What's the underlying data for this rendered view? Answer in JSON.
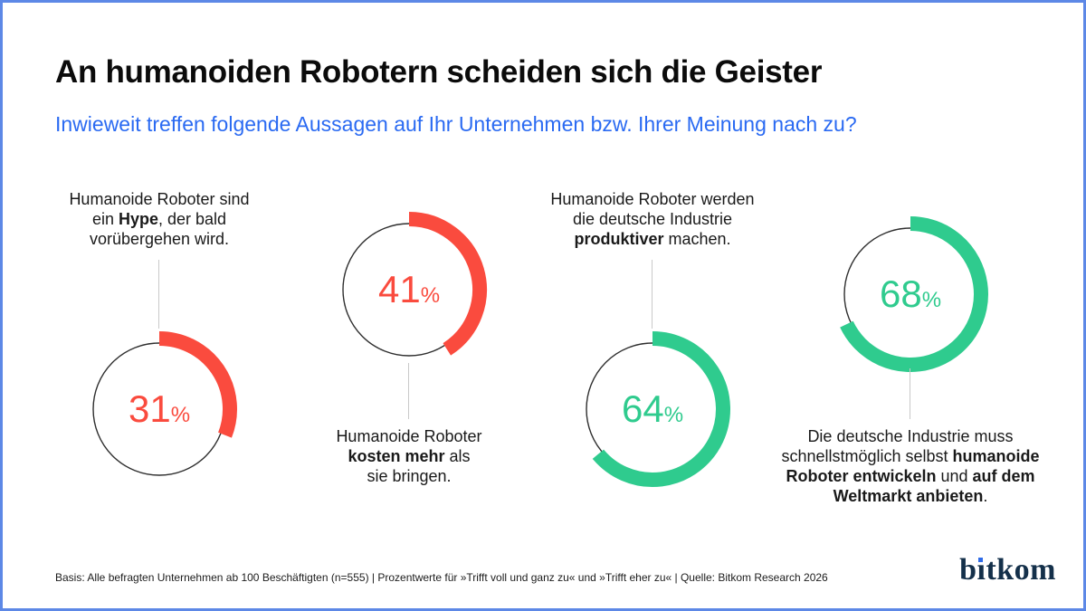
{
  "page": {
    "title": "An humanoiden Robotern scheiden sich die Geister",
    "subtitle": "Inwieweit treffen folgende Aussagen auf Ihr Unternehmen bzw. Ihrer Meinung nach zu?",
    "footer": "Basis: Alle befragten Unternehmen ab 100 Beschäftigten (n=555) | Prozentwerte für »Trifft voll und ganz zu« und »Trifft eher zu« | Quelle: Bitkom Research 2026",
    "logo_text": "bitkom",
    "logo": {
      "pre": "b",
      "i": "ı",
      "post": "tkom"
    }
  },
  "colors": {
    "accent_red": "#fa4b3e",
    "accent_green": "#2fcb8e",
    "subtitle_blue": "#2a6af2",
    "border_blue": "#5d88e6",
    "ring_outline": "#2e2e2e",
    "connector_gray": "#c9c9c9",
    "logo_navy": "#14304a",
    "logo_dot_blue": "#2f6be8"
  },
  "charts": [
    {
      "id": "hype",
      "percent": 31,
      "value_label": "31",
      "percent_sign": "%",
      "color": "#fa4b3e",
      "label_position": "above",
      "label_segments": [
        {
          "text": "Humanoide Roboter sind\nein ",
          "bold": false
        },
        {
          "text": "Hype",
          "bold": true
        },
        {
          "text": ", der bald\nvorübergehen wird.",
          "bold": false
        }
      ]
    },
    {
      "id": "kosten",
      "percent": 41,
      "value_label": "41",
      "percent_sign": "%",
      "color": "#fa4b3e",
      "label_position": "below",
      "label_segments": [
        {
          "text": "Humanoide Roboter\n",
          "bold": false
        },
        {
          "text": "kosten mehr",
          "bold": true
        },
        {
          "text": " als\nsie bringen.",
          "bold": false
        }
      ]
    },
    {
      "id": "produktiver",
      "percent": 64,
      "value_label": "64",
      "percent_sign": "%",
      "color": "#2fcb8e",
      "label_position": "above",
      "label_segments": [
        {
          "text": "Humanoide Roboter werden\ndie deutsche Industrie\n",
          "bold": false
        },
        {
          "text": "produktiver",
          "bold": true
        },
        {
          "text": " machen.",
          "bold": false
        }
      ]
    },
    {
      "id": "weltmarkt",
      "percent": 68,
      "value_label": "68",
      "percent_sign": "%",
      "color": "#2fcb8e",
      "label_position": "below",
      "label_segments": [
        {
          "text": "Die deutsche Industrie muss\nschnellstmöglich selbst ",
          "bold": false
        },
        {
          "text": "humanoide\nRoboter entwickeln",
          "bold": true
        },
        {
          "text": " und ",
          "bold": false
        },
        {
          "text": "auf dem\nWeltmarkt anbieten",
          "bold": true
        },
        {
          "text": ".",
          "bold": false
        }
      ]
    }
  ],
  "chart_data": {
    "type": "donut",
    "title": "An humanoiden Robotern scheiden sich die Geister",
    "subtitle": "Inwieweit treffen folgende Aussagen auf Ihr Unternehmen bzw. Ihrer Meinung nach zu?",
    "categories": [
      "Humanoide Roboter sind ein Hype, der bald vorübergehen wird.",
      "Humanoide Roboter kosten mehr als sie bringen.",
      "Humanoide Roboter werden die deutsche Industrie produktiver machen.",
      "Die deutsche Industrie muss schnellstmöglich selbst humanoide Roboter entwickeln und auf dem Weltmarkt anbieten."
    ],
    "values": [
      31,
      41,
      64,
      68
    ],
    "unit": "%",
    "colors": [
      "#fa4b3e",
      "#fa4b3e",
      "#2fcb8e",
      "#2fcb8e"
    ],
    "value_range": [
      0,
      100
    ],
    "legend": "none",
    "source": "Bitkom Research 2026",
    "basis": "Alle befragten Unternehmen ab 100 Beschäftigten (n=555)"
  }
}
